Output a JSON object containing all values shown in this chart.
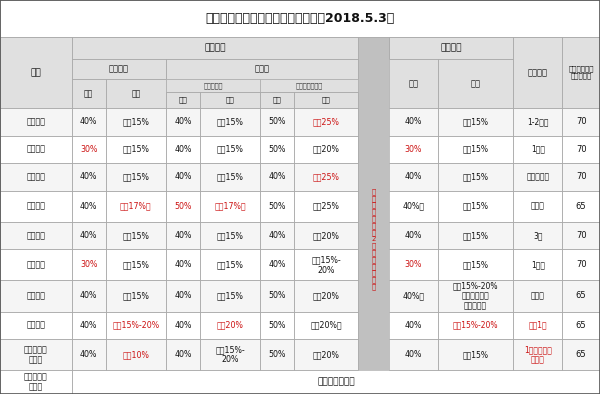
{
  "title": "无锡部分银行新房贷款利率一览表（2018.5.3）",
  "banks": [
    "中国银行",
    "农业银行",
    "工商银行",
    "建设银行",
    "交通银行",
    "招商银行",
    "江苏银行",
    "华夏银行",
    "无锡农村商\n业银行",
    "中国邮政储\n蓄银行"
  ],
  "data": [
    [
      "40%",
      "上浮15%",
      "40%",
      "上浮15%",
      "50%",
      "上浮25%",
      "40%",
      "上浮15%",
      "1-2个月",
      "70"
    ],
    [
      "30%",
      "上浮15%",
      "40%",
      "上浮15%",
      "50%",
      "上浮20%",
      "30%",
      "上浮15%",
      "1个月",
      "70"
    ],
    [
      "40%",
      "上浮15%",
      "40%",
      "上浮15%",
      "40%",
      "上浮25%",
      "40%",
      "上浮15%",
      "看合作楼盘",
      "70"
    ],
    [
      "40%",
      "上浮17%起",
      "50%",
      "上浮17%起",
      "50%",
      "上浮25%",
      "40%起",
      "上浮15%",
      "不确定",
      "65"
    ],
    [
      "40%",
      "上浮15%",
      "40%",
      "上浮15%",
      "40%",
      "上浮20%",
      "40%",
      "上浮15%",
      "3周",
      "70"
    ],
    [
      "30%",
      "上浮15%",
      "40%",
      "上浮15%",
      "40%",
      "上浮15%-\n20%",
      "30%",
      "上浮15%",
      "1个月",
      "70"
    ],
    [
      "40%",
      "上浮15%",
      "40%",
      "上浮15%",
      "50%",
      "上浮20%",
      "40%起",
      "上浮15%-20%\n（部分支行不\n提供贷款）",
      "不确定",
      "65"
    ],
    [
      "40%",
      "上浮15%-20%",
      "40%",
      "上浮20%",
      "50%",
      "上浮20%起",
      "40%",
      "上浮15%-20%",
      "最快1周",
      "65"
    ],
    [
      "40%",
      "上浮10%",
      "40%",
      "上浮15%-\n20%",
      "50%",
      "上浮20%",
      "40%",
      "上浮15%",
      "1周（看合作\n楼盘）",
      "65"
    ],
    [
      "暂时不提供贷款",
      "",
      "",
      "",
      "",
      "",
      "",
      "",
      "",
      ""
    ]
  ],
  "red_cells": {
    "0": [
      5
    ],
    "1": [
      0,
      6
    ],
    "2": [
      5
    ],
    "3": [
      1,
      2,
      3
    ],
    "5": [
      0,
      6
    ],
    "7": [
      1,
      3,
      7
    ],
    "8": [
      1
    ]
  },
  "red_time_rows": [
    7,
    8
  ],
  "col_widths_raw": [
    9.5,
    4.5,
    8.0,
    4.5,
    8.0,
    4.5,
    8.5,
    4.0,
    6.5,
    10.0,
    6.5,
    5.0
  ],
  "row_heights_raw": [
    10,
    6,
    5.5,
    8,
    7.5,
    7.5,
    7.5,
    8.5,
    7.5,
    8.5,
    8.5,
    7.5,
    8.5,
    6.5
  ],
  "header_bg": "#e0e0e0",
  "even_bg": "#f5f5f5",
  "odd_bg": "#ffffff",
  "mid_bg": "#c0c0c0",
  "red_color": "#cc1111",
  "black_color": "#111111",
  "border_color": "#aaaaaa",
  "title_fs": 9,
  "header_fs": 6.5,
  "data_fs": 6.0
}
